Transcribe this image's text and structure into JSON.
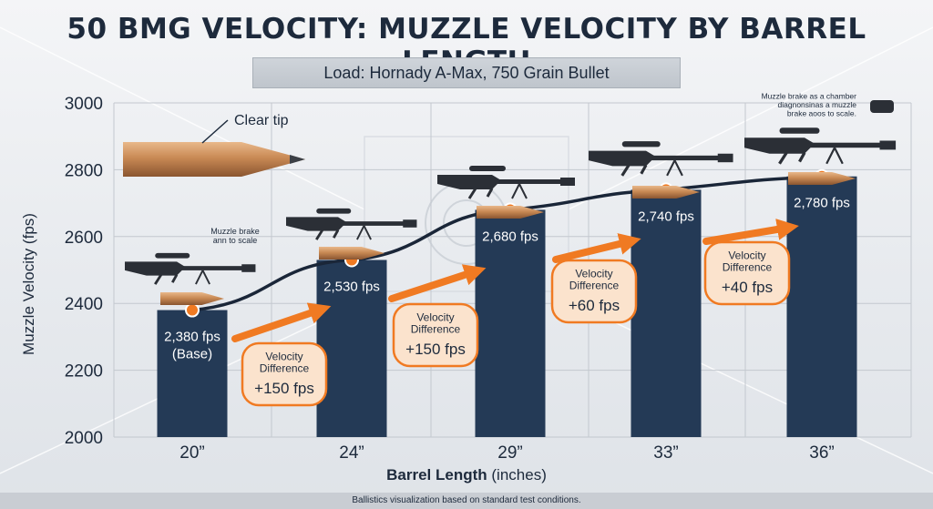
{
  "title": "50 BMG VELOCITY: MUZZLE VELOCITY BY BARREL LENGTH",
  "subtitle": "Load: Hornady A-Max, 750 Grain Bullet",
  "footer": "Ballistics visualization based on standard test conditions.",
  "chart_data": {
    "type": "bar",
    "categories": [
      "20”",
      "24”",
      "29”",
      "33”",
      "36”"
    ],
    "values": [
      2380,
      2530,
      2680,
      2740,
      2780
    ],
    "value_labels": [
      "2,380 fps",
      "2,530 fps",
      "2,680 fps",
      "2,740 fps",
      "2,780 fps"
    ],
    "base_note": "(Base)",
    "ylabel": "Muzzle Velocity (fps)",
    "xlabel_bold": "Barrel Length",
    "xlabel_rest": " (inches)",
    "ylim": [
      2000,
      3000
    ],
    "yticks": [
      2000,
      2200,
      2400,
      2600,
      2800,
      3000
    ],
    "grid": true,
    "differences": [
      {
        "heading": "Velocity\nDifference",
        "value": "+150 fps"
      },
      {
        "heading": "Velocity\nDifference",
        "value": "+150 fps"
      },
      {
        "heading": "Velocity\nDifference",
        "value": "+60 fps"
      },
      {
        "heading": "Velocity\nDifference",
        "value": "+40 fps"
      }
    ],
    "annotations": {
      "clear_tip": "Clear tip",
      "muzzle_brake_small": "Muzzle brake\nann to scale",
      "muzzle_brake_note": "Muzzle brake as a chamber\ndiagnonsinas a muzzle\nbrake aoos to scale."
    },
    "colors": {
      "bar": "#243a56",
      "accent": "#f07a22",
      "line": "#1a2638",
      "text": "#1d2a3c",
      "bullet": "#c98a55"
    }
  }
}
